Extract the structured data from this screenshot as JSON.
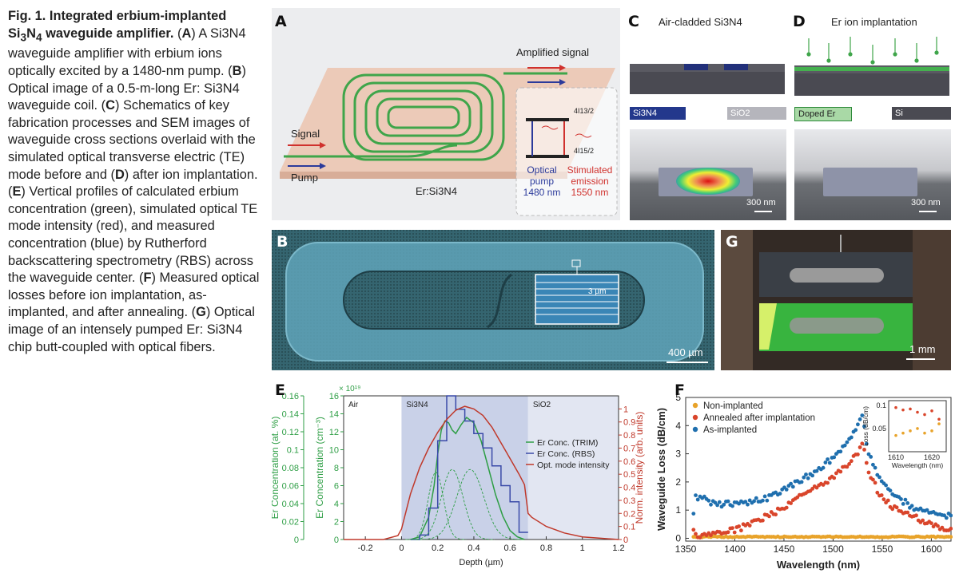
{
  "caption": {
    "title": "Fig. 1. Integrated erbium-implanted Si3N4 waveguide amplifier.",
    "parts": [
      {
        "letter": "A",
        "text": "A Si3N4 waveguide amplifier with erbium ions optically excited by a 1480-nm pump."
      },
      {
        "letter": "B",
        "text": "Optical image of a 0.5-m-long Er: Si3N4 waveguide coil."
      },
      {
        "letter": "C",
        "text": "Schematics of key fabrication processes and SEM images of waveguide cross sections overlaid with the simulated optical transverse electric (TE) mode before and"
      },
      {
        "letter": "D",
        "text": "after ion implantation."
      },
      {
        "letter": "E",
        "text": "Vertical profiles of calculated erbium concentration (green), simulated optical TE mode intensity (red), and measured concentration (blue) by Rutherford backscattering spectrometry (RBS) across the waveguide center."
      },
      {
        "letter": "F",
        "text": "Measured optical losses before ion implantation, as-implanted, and after annealing."
      },
      {
        "letter": "G",
        "text": "Optical image of an intensely pumped Er: Si3N4 chip butt-coupled with optical fibers."
      }
    ]
  },
  "panelA": {
    "letter": "A",
    "amplified": "Amplified signal",
    "signal": "Signal",
    "pump": "Pump",
    "material": "Er:Si3N4",
    "level_top": "4I13/2",
    "level_bottom": "4I15/2",
    "pump_label": "Optical pump 1480 nm",
    "emission_label": "Stimulated emission 1550 nm",
    "colors": {
      "signal": "#d0312d",
      "pump": "#2b3a9b",
      "waveguide": "#3fa54a",
      "substrate": "#eccab8"
    }
  },
  "panelB": {
    "letter": "B",
    "scale": "400 µm",
    "inset_scale": "3 µm"
  },
  "panelC": {
    "letter": "C",
    "title": "Air-cladded Si3N4",
    "legend_left": "Si3N4",
    "legend_right": "SiO2",
    "scale": "300 nm"
  },
  "panelD": {
    "letter": "D",
    "title": "Er ion implantation",
    "legend_left": "Doped Er",
    "legend_right": "Si",
    "scale": "300 nm"
  },
  "panelG": {
    "letter": "G",
    "scale": "1 mm"
  },
  "chart_data": [
    {
      "panel": "E",
      "type": "line",
      "title": "",
      "xlabel": "Depth (µm)",
      "ylabel_outer": "Er Concentration (at. %)",
      "ylabel_inner": "Er Concentration (cm⁻³)",
      "ylabel_right": "Norm. intensity (arb. units)",
      "multiplier": "× 10¹⁹",
      "xlim": [
        -0.32,
        1.2
      ],
      "xticks": [
        -0.2,
        0,
        0.2,
        0.4,
        0.6,
        0.8,
        1,
        1.2
      ],
      "y_outer_lim": [
        0,
        0.16
      ],
      "y_outer_ticks": [
        0,
        0.02,
        0.04,
        0.06,
        0.08,
        0.1,
        0.12,
        0.14,
        0.16
      ],
      "y_inner_lim": [
        0,
        16
      ],
      "y_inner_ticks": [
        0,
        2,
        4,
        6,
        8,
        10,
        12,
        14,
        16
      ],
      "y_right_lim": [
        0,
        1.1
      ],
      "y_right_ticks": [
        0,
        0.1,
        0.2,
        0.3,
        0.4,
        0.5,
        0.6,
        0.7,
        0.8,
        0.9,
        1
      ],
      "regions": [
        {
          "label": "Air",
          "from": -0.32,
          "to": 0.0,
          "color": "#ffffff"
        },
        {
          "label": "Si3N4",
          "from": 0.0,
          "to": 0.7,
          "color": "#c9d1e8"
        },
        {
          "label": "SiO2",
          "from": 0.7,
          "to": 1.2,
          "color": "#e2e6f2"
        }
      ],
      "legend": [
        "Er Conc. (TRIM)",
        "Er Conc. (RBS)",
        "Opt. mode intensity"
      ],
      "series": [
        {
          "name": "Er Conc. (TRIM)",
          "axis": "inner",
          "color": "#2e9e45",
          "x": [
            0.05,
            0.1,
            0.15,
            0.18,
            0.2,
            0.22,
            0.24,
            0.26,
            0.28,
            0.3,
            0.33,
            0.36,
            0.4,
            0.44,
            0.48,
            0.52,
            0.56,
            0.6,
            0.64,
            0.68
          ],
          "y": [
            0,
            0.3,
            2.5,
            6,
            9.5,
            12.2,
            13.2,
            13.0,
            12.2,
            11.8,
            12.8,
            13.6,
            13.0,
            11.0,
            8.0,
            5.0,
            2.6,
            1.0,
            0.3,
            0
          ]
        },
        {
          "name": "Er Conc. (RBS)",
          "axis": "inner",
          "color": "#3a4aa8",
          "step": true,
          "x": [
            0.05,
            0.1,
            0.15,
            0.2,
            0.25,
            0.3,
            0.35,
            0.4,
            0.45,
            0.5,
            0.55,
            0.6,
            0.65,
            0.7
          ],
          "y": [
            0,
            0.5,
            3.5,
            11,
            16,
            14.5,
            13.2,
            11.8,
            10.2,
            8.2,
            6.0,
            4.2,
            0.8,
            0
          ]
        },
        {
          "name": "Opt. mode intensity",
          "axis": "right",
          "color": "#c0392b",
          "x": [
            -0.32,
            -0.2,
            -0.1,
            -0.02,
            0.0,
            0.05,
            0.1,
            0.15,
            0.2,
            0.25,
            0.3,
            0.35,
            0.4,
            0.45,
            0.5,
            0.55,
            0.6,
            0.65,
            0.68,
            0.7,
            0.72,
            0.8,
            0.9,
            1.0,
            1.1,
            1.2
          ],
          "y": [
            0,
            0,
            0,
            0.03,
            0.08,
            0.35,
            0.55,
            0.7,
            0.82,
            0.92,
            0.99,
            1.02,
            1.0,
            0.95,
            0.86,
            0.74,
            0.62,
            0.5,
            0.42,
            0.2,
            0.17,
            0.1,
            0.05,
            0.02,
            0.01,
            0
          ]
        },
        {
          "name": "",
          "axis": "inner",
          "color": "#2e9e45",
          "dashed": true,
          "gauss": {
            "mu": 0.19,
            "sigma": 0.042,
            "amp": 7.5
          }
        },
        {
          "name": "",
          "axis": "inner",
          "color": "#2e9e45",
          "dashed": true,
          "gauss": {
            "mu": 0.28,
            "sigma": 0.06,
            "amp": 7.8
          }
        },
        {
          "name": "",
          "axis": "inner",
          "color": "#2e9e45",
          "dashed": true,
          "gauss": {
            "mu": 0.38,
            "sigma": 0.075,
            "amp": 7.8
          }
        }
      ]
    },
    {
      "panel": "F",
      "type": "scatter",
      "title": "",
      "xlabel": "Wavelength (nm)",
      "ylabel": "Waveguide Loss (dB/cm)",
      "xlim": [
        1350,
        1620
      ],
      "xticks": [
        1350,
        1400,
        1450,
        1500,
        1550,
        1600
      ],
      "ylim": [
        -0.1,
        5
      ],
      "yticks": [
        0,
        1,
        2,
        3,
        4,
        5
      ],
      "legend": [
        "Non-implanted",
        "Annealed after implantation",
        "As-implanted"
      ],
      "series": [
        {
          "name": "Non-implanted",
          "color": "#e8a32a",
          "x": [
            1360,
            1620
          ],
          "y": [
            0.05,
            0.05
          ]
        },
        {
          "name": "Annealed after implantation",
          "color": "#d9452b",
          "x": [
            1360,
            1380,
            1400,
            1420,
            1440,
            1460,
            1480,
            1500,
            1515,
            1525,
            1530,
            1535,
            1545,
            1560,
            1580,
            1600,
            1620
          ],
          "y": [
            0.1,
            0.15,
            0.3,
            0.55,
            0.9,
            1.3,
            1.75,
            2.15,
            2.6,
            3.0,
            3.5,
            2.5,
            1.7,
            1.15,
            0.8,
            0.45,
            0.3
          ]
        },
        {
          "name": "As-implanted",
          "color": "#1f6fae",
          "x": [
            1360,
            1375,
            1390,
            1410,
            1430,
            1450,
            1470,
            1490,
            1505,
            1515,
            1525,
            1530,
            1535,
            1545,
            1560,
            1580,
            1600,
            1620
          ],
          "y": [
            1.5,
            1.3,
            1.2,
            1.25,
            1.4,
            1.75,
            2.1,
            2.6,
            3.0,
            3.4,
            4.0,
            4.3,
            3.2,
            2.3,
            1.6,
            1.1,
            0.9,
            0.8
          ]
        }
      ],
      "inset": {
        "xlabel": "Wavelength (nm)",
        "ylabel": "Loss (dB/cm)",
        "xticks": [
          1610,
          1620
        ],
        "yticks": [
          0.05,
          0.1
        ],
        "xlim": [
          1608,
          1624
        ],
        "ylim": [
          0,
          0.11
        ],
        "series": [
          {
            "name": "Annealed after implantation",
            "color": "#d9452b",
            "x": [
              1610,
              1612,
              1614,
              1616,
              1618,
              1620,
              1622
            ],
            "y": [
              0.095,
              0.09,
              0.092,
              0.085,
              0.08,
              0.088,
              0.07
            ]
          },
          {
            "name": "Non-implanted",
            "color": "#e8a32a",
            "x": [
              1610,
              1612,
              1614,
              1616,
              1618,
              1620,
              1622
            ],
            "y": [
              0.035,
              0.04,
              0.045,
              0.05,
              0.04,
              0.045,
              0.06
            ]
          }
        ]
      }
    }
  ]
}
